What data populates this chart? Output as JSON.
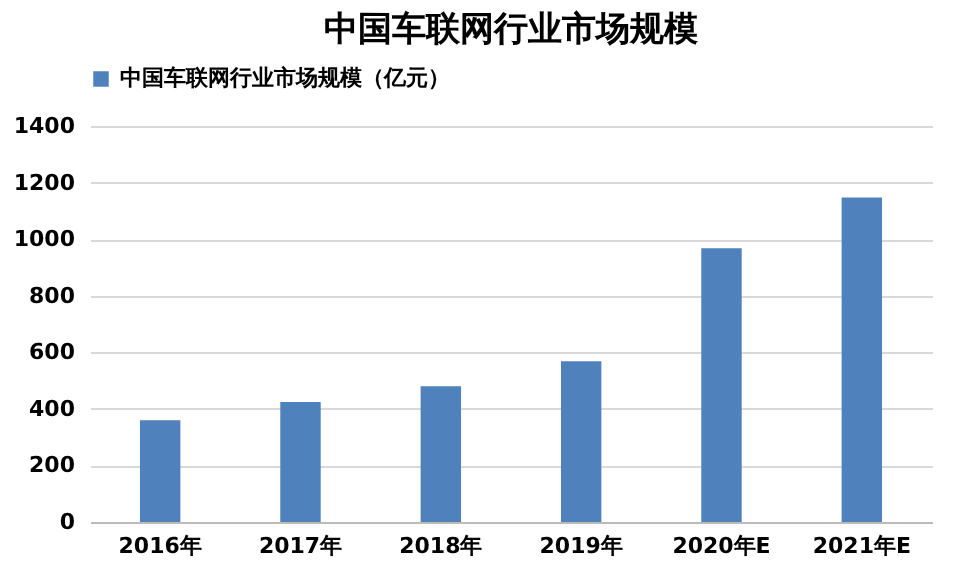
{
  "chart_data": {
    "type": "bar",
    "title": "中国车联网行业市场规模",
    "categories": [
      "2016年",
      "2017年",
      "2018年",
      "2019年",
      "2020年E",
      "2021年E"
    ],
    "series": [
      {
        "name": "中国车联网行业市场规模（亿元）",
        "color": "#4f81bd",
        "values": [
          360,
          424,
          480,
          568,
          968,
          1147
        ]
      }
    ],
    "ylim": [
      0,
      1400
    ],
    "yticks": [
      0,
      200,
      400,
      600,
      800,
      1000,
      1200,
      1400
    ],
    "grid": "y",
    "legend": "top"
  }
}
